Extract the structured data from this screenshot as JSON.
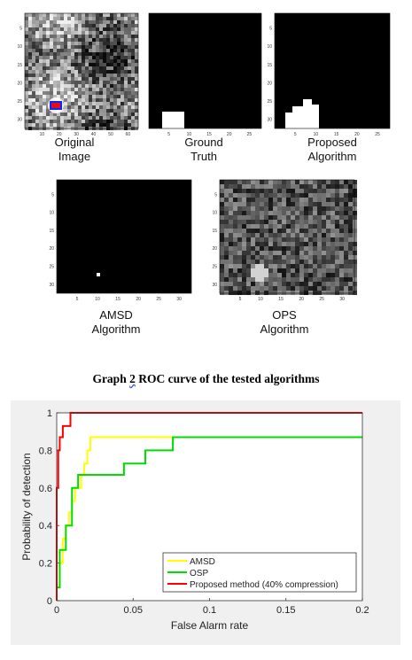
{
  "panels": [
    {
      "id": "original",
      "caption": "Original\nImage",
      "x_ticks": [
        "10",
        "20",
        "30",
        "40",
        "50",
        "60"
      ],
      "y_ticks": [
        "5",
        "10",
        "15",
        "20",
        "25",
        "30"
      ]
    },
    {
      "id": "ground-truth",
      "caption": "Ground\nTruth",
      "x_ticks": [
        "5",
        "10",
        "15",
        "20",
        "25"
      ],
      "y_ticks": []
    },
    {
      "id": "proposed",
      "caption": "Proposed\nAlgorithm",
      "x_ticks": [
        "5",
        "10",
        "15",
        "20",
        "25"
      ],
      "y_ticks": [
        "5",
        "10",
        "15",
        "20",
        "25",
        "30"
      ]
    },
    {
      "id": "amsd",
      "caption": "AMSD\nAlgorithm",
      "x_ticks": [
        "5",
        "10",
        "15",
        "20",
        "25",
        "30"
      ],
      "y_ticks": [
        "5",
        "10",
        "15",
        "20",
        "25",
        "30"
      ]
    },
    {
      "id": "ops",
      "caption": "OPS\nAlgorithm",
      "x_ticks": [
        "5",
        "10",
        "15",
        "20",
        "25",
        "30"
      ],
      "y_ticks": [
        "5",
        "10",
        "15",
        "20",
        "25",
        "30"
      ]
    }
  ],
  "heading": {
    "prefix": "Graph ",
    "number": "2",
    "rest": " ROC curve of the tested algorithms"
  },
  "chart_data": {
    "type": "line",
    "xlabel": "False Alarm rate",
    "ylabel": "Probability of detection",
    "xlim": [
      0,
      0.2
    ],
    "ylim": [
      0,
      1
    ],
    "x_ticks": [
      "0",
      "0.05",
      "0.1",
      "0.15",
      "0.2"
    ],
    "y_ticks": [
      "0",
      "0.2",
      "0.4",
      "0.6",
      "0.8",
      "1"
    ],
    "grid": false,
    "legend_position": "bottom-right",
    "series": [
      {
        "name": "AMSD",
        "color": "#ffff00",
        "x": [
          0,
          0,
          0.002,
          0.002,
          0.004,
          0.004,
          0.006,
          0.006,
          0.008,
          0.008,
          0.01,
          0.01,
          0.012,
          0.012,
          0.016,
          0.016,
          0.018,
          0.018,
          0.02,
          0.02,
          0.022,
          0.022,
          0.2
        ],
        "y": [
          0,
          0.07,
          0.07,
          0.2,
          0.2,
          0.33,
          0.33,
          0.4,
          0.4,
          0.47,
          0.47,
          0.53,
          0.53,
          0.6,
          0.6,
          0.67,
          0.67,
          0.73,
          0.73,
          0.8,
          0.8,
          0.87,
          0.87
        ]
      },
      {
        "name": "OSP",
        "color": "#00dd00",
        "x": [
          0,
          0,
          0.002,
          0.002,
          0.006,
          0.006,
          0.01,
          0.01,
          0.014,
          0.014,
          0.026,
          0.026,
          0.044,
          0.044,
          0.058,
          0.058,
          0.076,
          0.076,
          0.2
        ],
        "y": [
          0,
          0.07,
          0.07,
          0.27,
          0.27,
          0.4,
          0.4,
          0.6,
          0.6,
          0.67,
          0.67,
          0.67,
          0.67,
          0.73,
          0.73,
          0.8,
          0.8,
          0.87,
          0.87
        ]
      },
      {
        "name": "Proposed method (40% compression)",
        "color": "#ff0000",
        "x": [
          0,
          0,
          0.001,
          0.001,
          0.002,
          0.002,
          0.004,
          0.004,
          0.009,
          0.009,
          0.2
        ],
        "y": [
          0,
          0.6,
          0.6,
          0.8,
          0.8,
          0.87,
          0.87,
          0.93,
          0.93,
          1.0,
          1.0
        ]
      }
    ]
  }
}
